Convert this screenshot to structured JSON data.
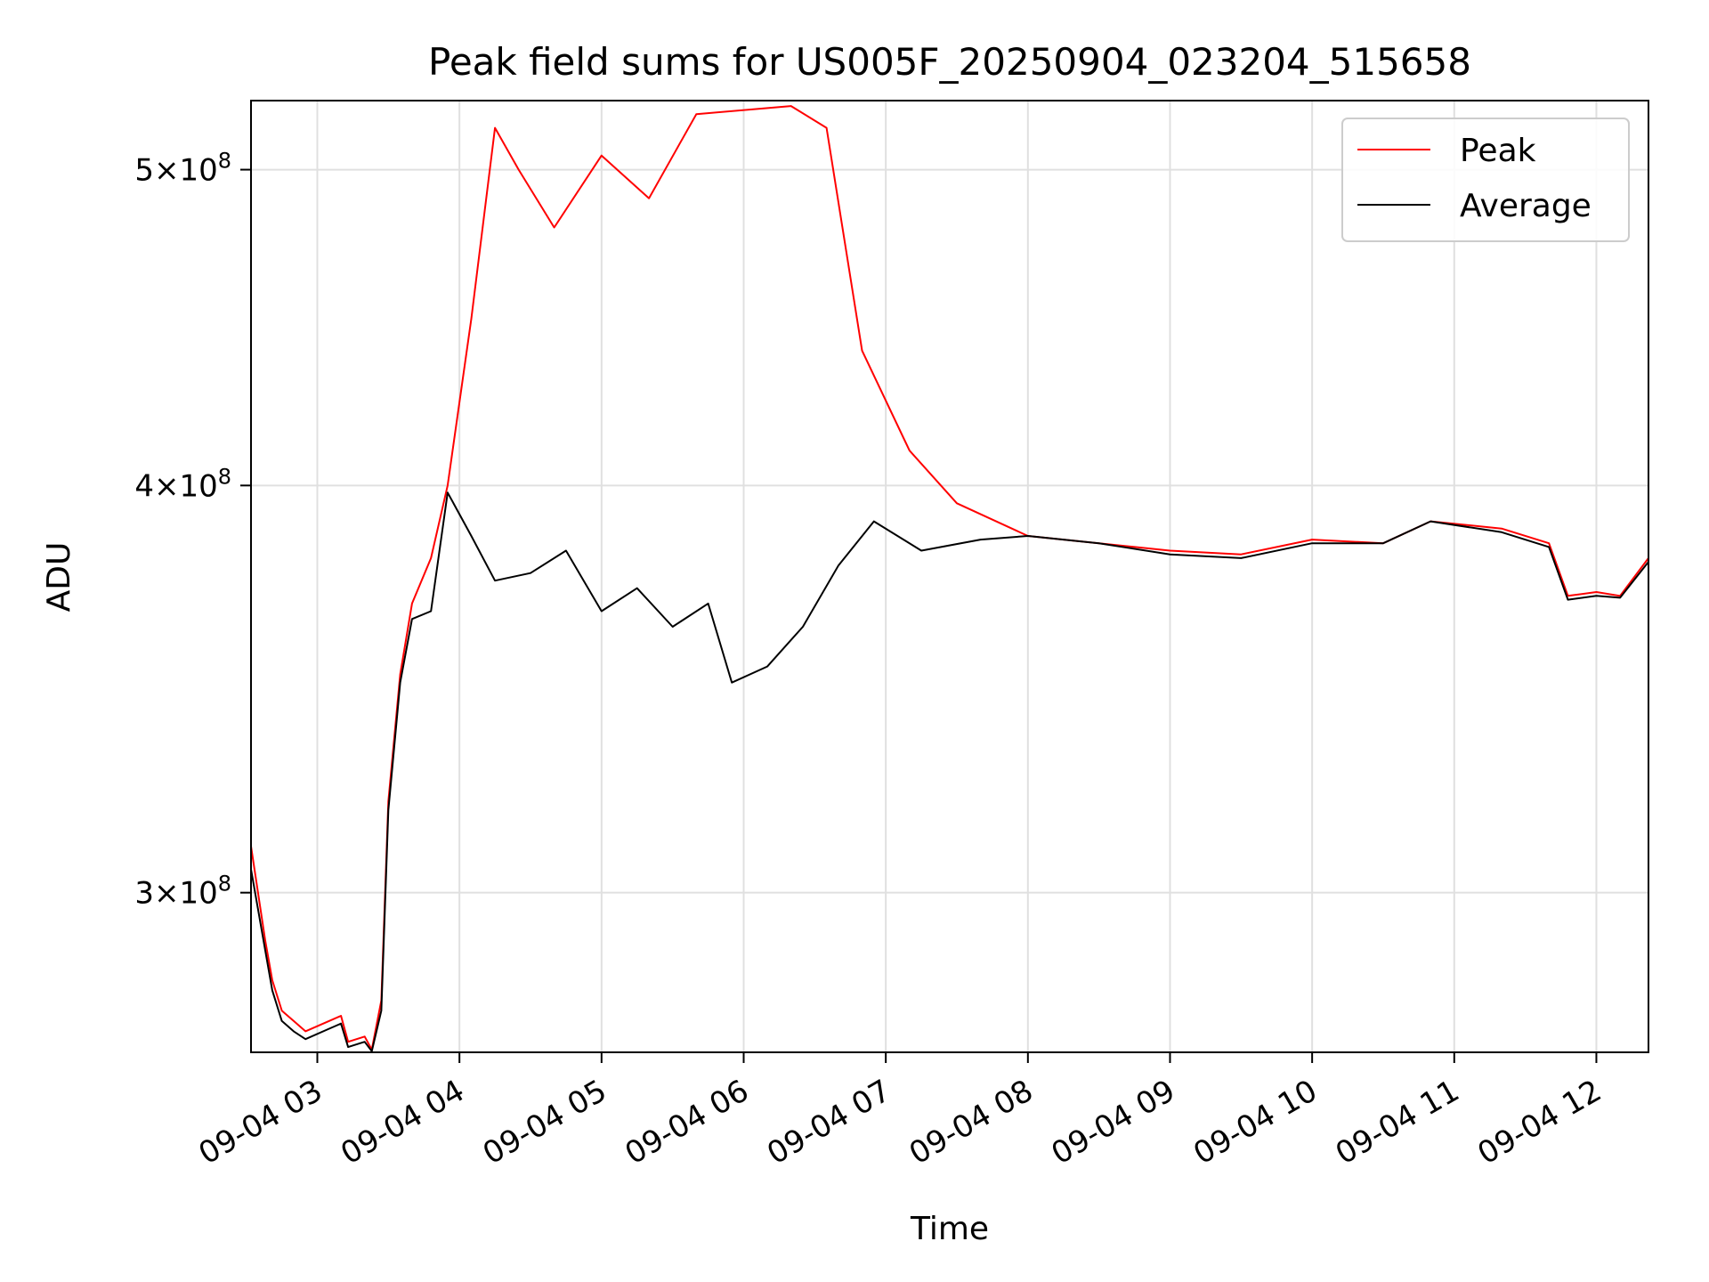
{
  "chart_data": {
    "type": "line",
    "title": "Peak field sums for US005F_20250904_023204_515658",
    "xlabel": "Time",
    "ylabel": "ADU",
    "xlim": [
      "2025-09-04 02:32",
      "2025-09-04 12:22"
    ],
    "ylim": [
      268000000,
      525000000
    ],
    "y_scale": "log",
    "grid": true,
    "legend_position": "top-right",
    "x_ticks": [
      {
        "t": "2025-09-04 03:00",
        "label": "09-04 03"
      },
      {
        "t": "2025-09-04 04:00",
        "label": "09-04 04"
      },
      {
        "t": "2025-09-04 05:00",
        "label": "09-04 05"
      },
      {
        "t": "2025-09-04 06:00",
        "label": "09-04 06"
      },
      {
        "t": "2025-09-04 07:00",
        "label": "09-04 07"
      },
      {
        "t": "2025-09-04 08:00",
        "label": "09-04 08"
      },
      {
        "t": "2025-09-04 09:00",
        "label": "09-04 09"
      },
      {
        "t": "2025-09-04 10:00",
        "label": "09-04 10"
      },
      {
        "t": "2025-09-04 11:00",
        "label": "09-04 11"
      },
      {
        "t": "2025-09-04 12:00",
        "label": "09-04 12"
      }
    ],
    "y_ticks": [
      {
        "v": 300000000,
        "mantissa": "3",
        "times": "×",
        "base": "10",
        "exp": "8"
      },
      {
        "v": 400000000,
        "mantissa": "4",
        "times": "×",
        "base": "10",
        "exp": "8"
      },
      {
        "v": 500000000,
        "mantissa": "5",
        "times": "×",
        "base": "10",
        "exp": "8"
      }
    ],
    "series": [
      {
        "name": "Peak",
        "color": "#ff0000",
        "points": [
          [
            "2025-09-04 02:32",
            310000000
          ],
          [
            "2025-09-04 02:38",
            290000000
          ],
          [
            "2025-09-04 02:41",
            282000000
          ],
          [
            "2025-09-04 02:45",
            276000000
          ],
          [
            "2025-09-04 02:50",
            274000000
          ],
          [
            "2025-09-04 02:55",
            272000000
          ],
          [
            "2025-09-04 03:05",
            274000000
          ],
          [
            "2025-09-04 03:10",
            275000000
          ],
          [
            "2025-09-04 03:13",
            270000000
          ],
          [
            "2025-09-04 03:20",
            271000000
          ],
          [
            "2025-09-04 03:23",
            268500000
          ],
          [
            "2025-09-04 03:27",
            278000000
          ],
          [
            "2025-09-04 03:30",
            320000000
          ],
          [
            "2025-09-04 03:35",
            350000000
          ],
          [
            "2025-09-04 03:40",
            368000000
          ],
          [
            "2025-09-04 03:48",
            380000000
          ],
          [
            "2025-09-04 03:55",
            400000000
          ],
          [
            "2025-09-04 04:05",
            450000000
          ],
          [
            "2025-09-04 04:15",
            515000000
          ],
          [
            "2025-09-04 04:25",
            500000000
          ],
          [
            "2025-09-04 04:40",
            480000000
          ],
          [
            "2025-09-04 05:00",
            505000000
          ],
          [
            "2025-09-04 05:20",
            490000000
          ],
          [
            "2025-09-04 05:40",
            520000000
          ],
          [
            "2025-09-04 06:20",
            523000000
          ],
          [
            "2025-09-04 06:35",
            515000000
          ],
          [
            "2025-09-04 06:50",
            440000000
          ],
          [
            "2025-09-04 07:10",
            410000000
          ],
          [
            "2025-09-04 07:30",
            395000000
          ],
          [
            "2025-09-04 08:00",
            386000000
          ],
          [
            "2025-09-04 08:30",
            384000000
          ],
          [
            "2025-09-04 09:00",
            382000000
          ],
          [
            "2025-09-04 09:30",
            381000000
          ],
          [
            "2025-09-04 10:00",
            385000000
          ],
          [
            "2025-09-04 10:30",
            384000000
          ],
          [
            "2025-09-04 10:50",
            390000000
          ],
          [
            "2025-09-04 11:20",
            388000000
          ],
          [
            "2025-09-04 11:40",
            384000000
          ],
          [
            "2025-09-04 11:48",
            370000000
          ],
          [
            "2025-09-04 12:00",
            371000000
          ],
          [
            "2025-09-04 12:10",
            370000000
          ],
          [
            "2025-09-04 12:22",
            380000000
          ]
        ]
      },
      {
        "name": "Average",
        "color": "#000000",
        "points": [
          [
            "2025-09-04 02:32",
            305000000
          ],
          [
            "2025-09-04 02:38",
            288000000
          ],
          [
            "2025-09-04 02:41",
            280000000
          ],
          [
            "2025-09-04 02:45",
            274000000
          ],
          [
            "2025-09-04 02:50",
            272000000
          ],
          [
            "2025-09-04 02:55",
            270500000
          ],
          [
            "2025-09-04 03:05",
            272500000
          ],
          [
            "2025-09-04 03:10",
            273500000
          ],
          [
            "2025-09-04 03:13",
            269000000
          ],
          [
            "2025-09-04 03:20",
            270000000
          ],
          [
            "2025-09-04 03:23",
            268200000
          ],
          [
            "2025-09-04 03:27",
            276000000
          ],
          [
            "2025-09-04 03:30",
            318000000
          ],
          [
            "2025-09-04 03:35",
            348000000
          ],
          [
            "2025-09-04 03:40",
            364000000
          ],
          [
            "2025-09-04 03:48",
            366000000
          ],
          [
            "2025-09-04 03:55",
            398000000
          ],
          [
            "2025-09-04 04:05",
            386000000
          ],
          [
            "2025-09-04 04:15",
            374000000
          ],
          [
            "2025-09-04 04:30",
            376000000
          ],
          [
            "2025-09-04 04:45",
            382000000
          ],
          [
            "2025-09-04 05:00",
            366000000
          ],
          [
            "2025-09-04 05:15",
            372000000
          ],
          [
            "2025-09-04 05:30",
            362000000
          ],
          [
            "2025-09-04 05:45",
            368000000
          ],
          [
            "2025-09-04 05:55",
            348000000
          ],
          [
            "2025-09-04 06:10",
            352000000
          ],
          [
            "2025-09-04 06:25",
            362000000
          ],
          [
            "2025-09-04 06:40",
            378000000
          ],
          [
            "2025-09-04 06:55",
            390000000
          ],
          [
            "2025-09-04 07:15",
            382000000
          ],
          [
            "2025-09-04 07:40",
            385000000
          ],
          [
            "2025-09-04 08:00",
            386000000
          ],
          [
            "2025-09-04 08:30",
            384000000
          ],
          [
            "2025-09-04 09:00",
            381000000
          ],
          [
            "2025-09-04 09:30",
            380000000
          ],
          [
            "2025-09-04 10:00",
            384000000
          ],
          [
            "2025-09-04 10:30",
            384000000
          ],
          [
            "2025-09-04 10:50",
            390000000
          ],
          [
            "2025-09-04 11:20",
            387000000
          ],
          [
            "2025-09-04 11:40",
            383000000
          ],
          [
            "2025-09-04 11:48",
            369000000
          ],
          [
            "2025-09-04 12:00",
            370000000
          ],
          [
            "2025-09-04 12:10",
            369500000
          ],
          [
            "2025-09-04 12:22",
            379000000
          ]
        ]
      }
    ]
  }
}
